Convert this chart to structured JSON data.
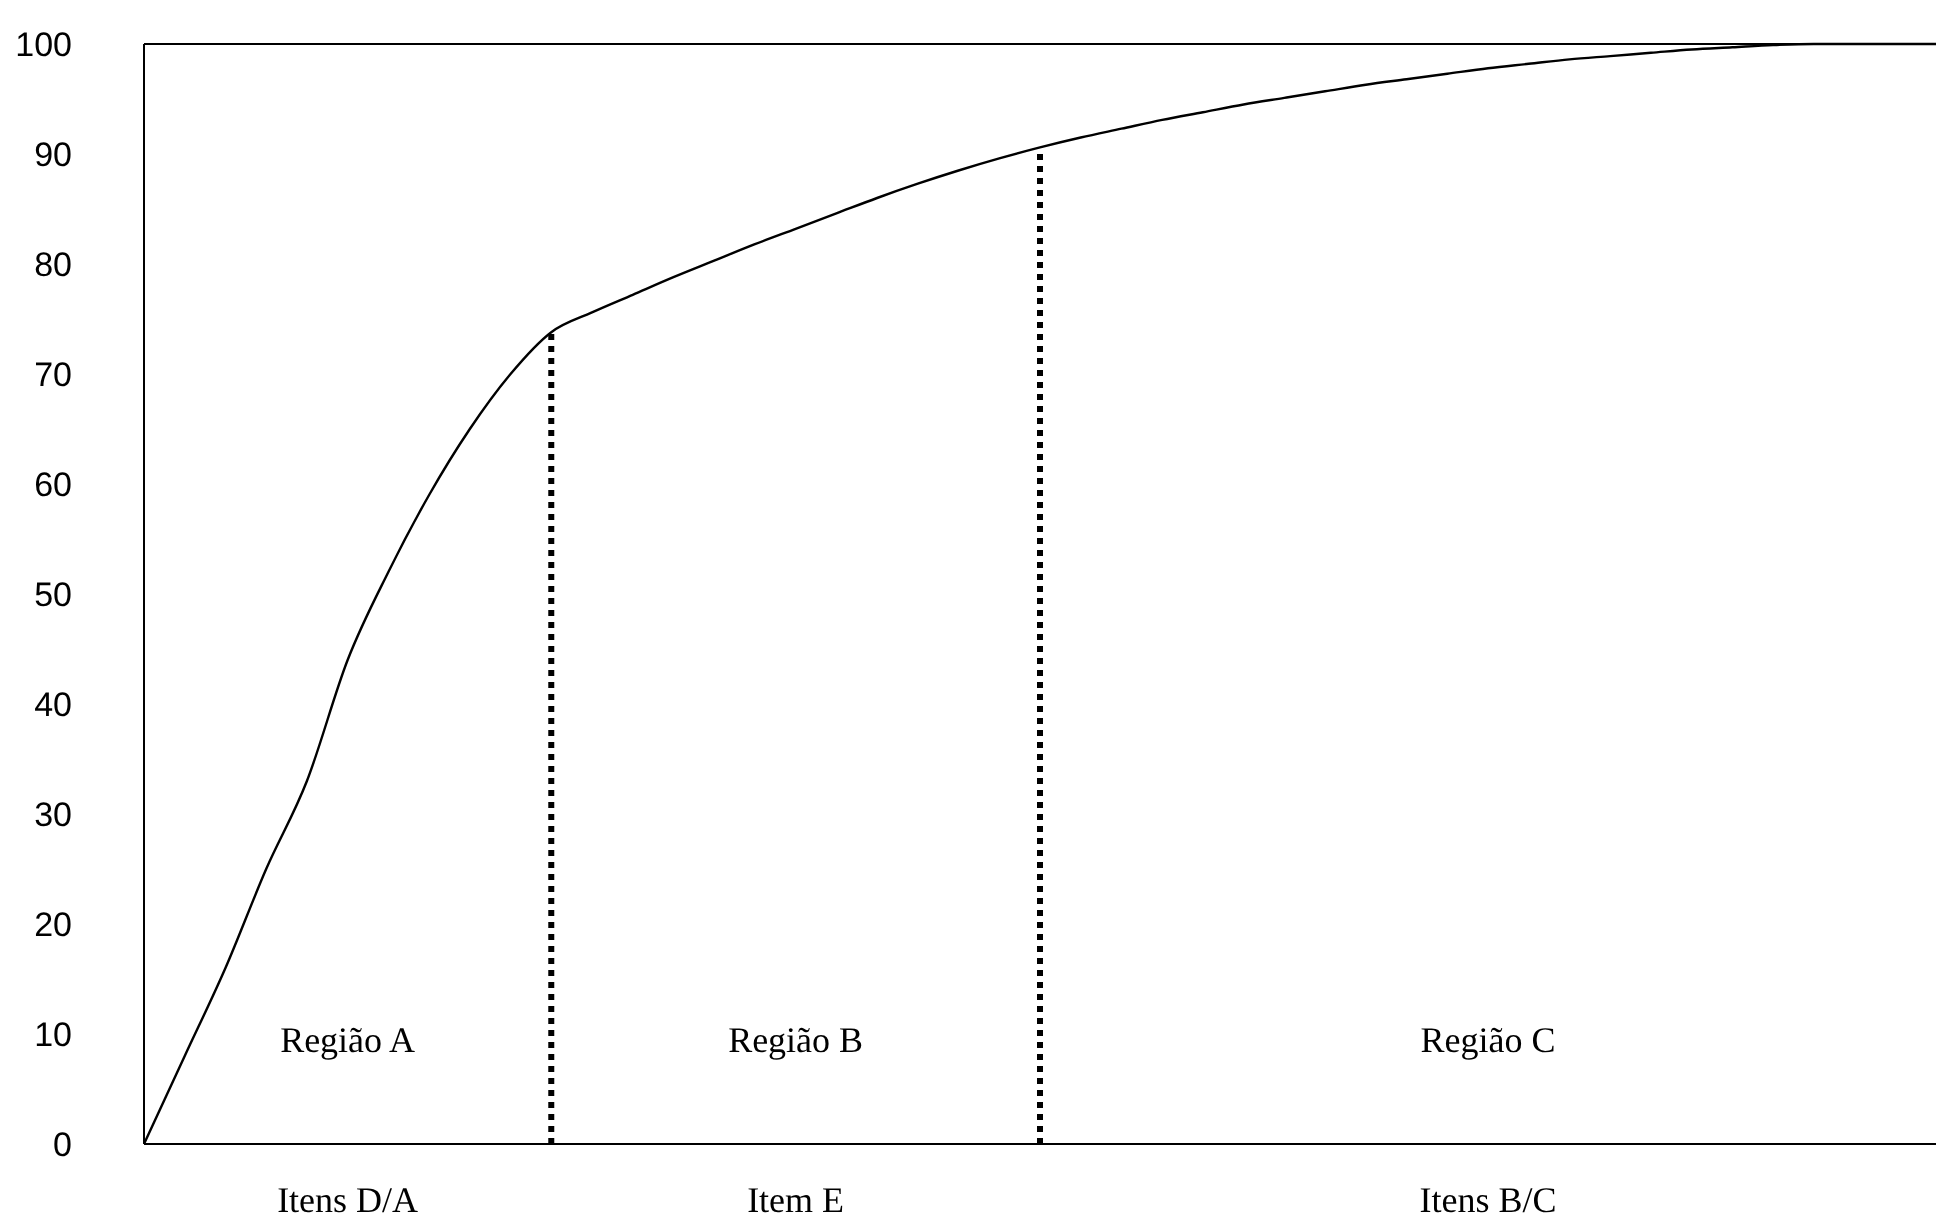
{
  "chart_data": {
    "type": "line",
    "categories": [
      null,
      null,
      null,
      null,
      null,
      null,
      null,
      null,
      null,
      null,
      null,
      null,
      null,
      null,
      null,
      null,
      null,
      null,
      null,
      null,
      null,
      null,
      null,
      null,
      null,
      null,
      null,
      null,
      null,
      null,
      null,
      null,
      null,
      null,
      null,
      null,
      null,
      null,
      null,
      null,
      null,
      null,
      null,
      null,
      null
    ],
    "series": [
      {
        "color": "#000000",
        "values": [
          0,
          8,
          16,
          25,
          33,
          44,
          52,
          59,
          65,
          70,
          73.8,
          75.6,
          77.2,
          78.8,
          80.3,
          81.8,
          83.2,
          84.6,
          86,
          87.3,
          88.5,
          89.6,
          90.6,
          91.5,
          92.3,
          93.1,
          93.8,
          94.5,
          95.1,
          95.7,
          96.3,
          96.8,
          97.3,
          97.8,
          98.2,
          98.6,
          98.9,
          99.2,
          99.5,
          99.7,
          99.9,
          100,
          100,
          100,
          100
        ]
      }
    ],
    "ylim": [
      0,
      100
    ],
    "yticks": [
      0,
      10,
      20,
      30,
      40,
      50,
      60,
      70,
      80,
      90,
      100
    ],
    "grid": false,
    "marker": "none",
    "line_style": "solid",
    "ref_lines": [
      {
        "axis": "y",
        "value": 100,
        "line_style": "solid",
        "color": "#000000"
      }
    ],
    "annotations": [
      "Região A",
      "Região B",
      "Região C",
      "Itens D/A",
      "Item E",
      "Itens B/C"
    ]
  }
}
